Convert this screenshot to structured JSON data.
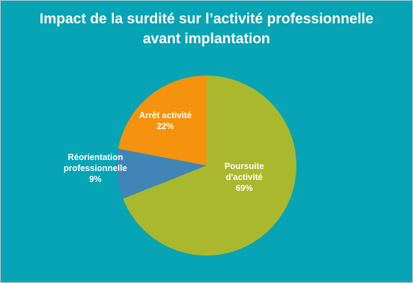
{
  "chart_data": {
    "type": "pie",
    "title_lines": [
      "Impact de la surdité sur l’activité professionnelle",
      "avant implantation"
    ],
    "slices": [
      {
        "label_lines": [
          "Poursuite",
          "d'activité"
        ],
        "value": 69,
        "value_label": "69%",
        "color": "#a9b82d"
      },
      {
        "label_lines": [
          "Réorientation",
          "professionnelle"
        ],
        "value": 9,
        "value_label": "9%",
        "color": "#3f86b6"
      },
      {
        "label_lines": [
          "Arrêt activité"
        ],
        "value": 22,
        "value_label": "22%",
        "color": "#f5920e"
      }
    ],
    "start_angle_deg": 0,
    "direction": "clockwise",
    "legend": "none",
    "background": "#06a4b4"
  }
}
